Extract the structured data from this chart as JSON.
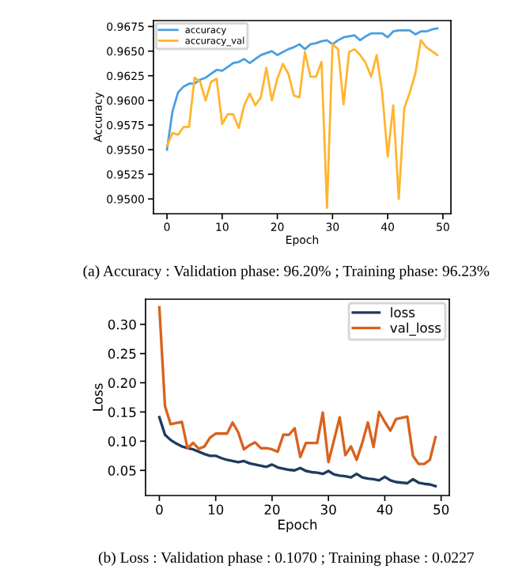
{
  "chart_data": [
    {
      "type": "line",
      "xlabel": "Epoch",
      "ylabel": "Accuracy",
      "x": [
        0,
        1,
        2,
        3,
        4,
        5,
        6,
        7,
        8,
        9,
        10,
        11,
        12,
        13,
        14,
        15,
        16,
        17,
        18,
        19,
        20,
        21,
        22,
        23,
        24,
        25,
        26,
        27,
        28,
        29,
        30,
        31,
        32,
        33,
        34,
        35,
        36,
        37,
        38,
        39,
        40,
        41,
        42,
        43,
        44,
        45,
        46,
        47,
        48,
        49
      ],
      "series": [
        {
          "name": "accuracy",
          "color": "#4a9fe0",
          "values": [
            0.955,
            0.9589,
            0.9608,
            0.9614,
            0.9617,
            0.9617,
            0.9621,
            0.9623,
            0.9627,
            0.9631,
            0.963,
            0.9634,
            0.9638,
            0.9639,
            0.9642,
            0.9638,
            0.9642,
            0.9646,
            0.9648,
            0.965,
            0.9646,
            0.9649,
            0.9652,
            0.9654,
            0.9657,
            0.9652,
            0.9657,
            0.9658,
            0.966,
            0.9661,
            0.9657,
            0.9661,
            0.9664,
            0.9665,
            0.9666,
            0.9661,
            0.9665,
            0.9668,
            0.9668,
            0.9668,
            0.9664,
            0.967,
            0.9671,
            0.9671,
            0.9671,
            0.9667,
            0.967,
            0.967,
            0.9672,
            0.9673
          ]
        },
        {
          "name": "accuracy_val",
          "color": "#ffb52e",
          "values": [
            0.9554,
            0.9567,
            0.9565,
            0.9573,
            0.9573,
            0.9623,
            0.9619,
            0.96,
            0.9619,
            0.9622,
            0.9576,
            0.9586,
            0.9586,
            0.9572,
            0.9595,
            0.9607,
            0.9595,
            0.9603,
            0.9633,
            0.96,
            0.9622,
            0.9637,
            0.9627,
            0.9605,
            0.9603,
            0.9649,
            0.9624,
            0.9624,
            0.9639,
            0.9491,
            0.9657,
            0.9652,
            0.9596,
            0.9649,
            0.9652,
            0.9646,
            0.9638,
            0.9624,
            0.9646,
            0.9608,
            0.9543,
            0.9595,
            0.95,
            0.9592,
            0.9608,
            0.9627,
            0.9661,
            0.9654,
            0.965,
            0.9646
          ]
        }
      ],
      "xlim": [
        -2.45,
        51.45
      ],
      "xticks": [
        0,
        10,
        20,
        30,
        40,
        50
      ],
      "ylim": [
        0.9485,
        0.9681
      ],
      "yticks": [
        {
          "value": 0.95,
          "label": "0.9500"
        },
        0.9525,
        {
          "value": 0.955,
          "label": "0.9550"
        },
        0.9575,
        {
          "value": 0.96,
          "label": "0.9600"
        },
        0.9625,
        {
          "value": 0.965,
          "label": "0.9650"
        },
        0.9675
      ],
      "legend": "top left",
      "grid": false,
      "annotations": [
        "(a) Accuracy : Validation phase: 96.20% ; Training phase: 96.23%"
      ]
    },
    {
      "type": "line",
      "xlabel": "Epoch",
      "ylabel": "Loss",
      "x": [
        0,
        1,
        2,
        3,
        4,
        5,
        6,
        7,
        8,
        9,
        10,
        11,
        12,
        13,
        14,
        15,
        16,
        17,
        18,
        19,
        20,
        21,
        22,
        23,
        24,
        25,
        26,
        27,
        28,
        29,
        30,
        31,
        32,
        33,
        34,
        35,
        36,
        37,
        38,
        39,
        40,
        41,
        42,
        43,
        44,
        45,
        46,
        47,
        48,
        49
      ],
      "series": [
        {
          "name": "loss",
          "color": "#1f3a5f",
          "values": [
            0.141,
            0.111,
            0.102,
            0.096,
            0.091,
            0.088,
            0.086,
            0.082,
            0.078,
            0.075,
            0.075,
            0.071,
            0.068,
            0.066,
            0.064,
            0.066,
            0.062,
            0.06,
            0.058,
            0.056,
            0.06,
            0.055,
            0.053,
            0.051,
            0.05,
            0.054,
            0.049,
            0.047,
            0.046,
            0.044,
            0.049,
            0.043,
            0.041,
            0.04,
            0.038,
            0.044,
            0.038,
            0.036,
            0.035,
            0.033,
            0.039,
            0.033,
            0.03,
            0.029,
            0.028,
            0.035,
            0.029,
            0.027,
            0.026,
            0.023
          ]
        },
        {
          "name": "val_loss",
          "color": "#d9621e",
          "values": [
            0.329,
            0.16,
            0.129,
            0.131,
            0.133,
            0.088,
            0.097,
            0.087,
            0.091,
            0.106,
            0.113,
            0.113,
            0.113,
            0.132,
            0.115,
            0.086,
            0.093,
            0.098,
            0.088,
            0.088,
            0.086,
            0.082,
            0.111,
            0.111,
            0.122,
            0.073,
            0.097,
            0.097,
            0.097,
            0.149,
            0.064,
            0.102,
            0.141,
            0.076,
            0.091,
            0.068,
            0.097,
            0.132,
            0.09,
            0.15,
            0.133,
            0.118,
            0.138,
            0.14,
            0.142,
            0.075,
            0.061,
            0.061,
            0.068,
            0.107
          ]
        }
      ],
      "xlim": [
        -2.45,
        51.45
      ],
      "xticks": [
        0,
        10,
        20,
        30,
        40,
        50
      ],
      "ylim": [
        0.007,
        0.343
      ],
      "yticks": [
        0.05,
        {
          "value": 0.1,
          "label": "0.10"
        },
        0.15,
        {
          "value": 0.2,
          "label": "0.20"
        },
        0.25,
        {
          "value": 0.3,
          "label": "0.30"
        }
      ],
      "legend": "top right",
      "grid": false,
      "annotations": [
        "(b) Loss : Validation phase : 0.1070 ; Training phase : 0.0227"
      ]
    }
  ]
}
